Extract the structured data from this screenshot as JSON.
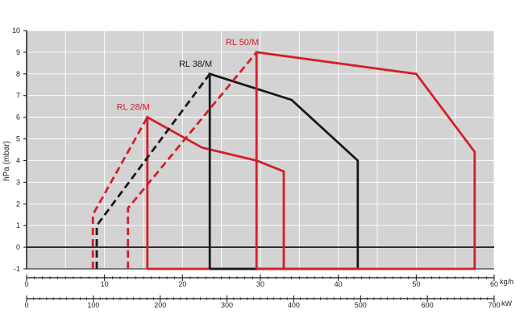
{
  "chart_data": {
    "type": "line",
    "title": "",
    "ylabel": "hPa (mbar)",
    "x_primary_unit": "kg/h",
    "x_secondary_unit": "kW",
    "xlim": [
      0,
      60
    ],
    "x_secondary_lim": [
      0,
      700
    ],
    "ylim": [
      -1,
      10
    ],
    "x_ticks": [
      "0",
      "10",
      "20",
      "30",
      "40",
      "50",
      "60"
    ],
    "x_secondary_ticks": [
      "0",
      "100",
      "200",
      "300",
      "400",
      "500",
      "600",
      "700"
    ],
    "y_ticks": [
      "-1",
      "0",
      "1",
      "2",
      "3",
      "4",
      "5",
      "6",
      "7",
      "8",
      "9",
      "10"
    ],
    "grid": true,
    "background": "#d3d3d3",
    "series": [
      {
        "name": "RL 28/M",
        "color": "#d4202a",
        "solid": [
          [
            15.5,
            -1
          ],
          [
            15.5,
            6
          ],
          [
            22.5,
            4.6
          ],
          [
            29.5,
            4
          ],
          [
            33,
            3.5
          ],
          [
            33,
            -1
          ],
          [
            15.5,
            -1
          ]
        ],
        "dashed": [
          [
            8.5,
            -1
          ],
          [
            8.5,
            1.5
          ],
          [
            15.5,
            6
          ]
        ]
      },
      {
        "name": "RL 38/M",
        "color": "#1a1a1a",
        "solid": [
          [
            23.5,
            -1
          ],
          [
            23.5,
            8
          ],
          [
            34,
            6.8
          ],
          [
            42.5,
            4
          ],
          [
            42.5,
            -1
          ],
          [
            23.5,
            -1
          ]
        ],
        "dashed": [
          [
            9,
            -1
          ],
          [
            9,
            1
          ],
          [
            23.5,
            8
          ]
        ]
      },
      {
        "name": "RL 50/M",
        "color": "#d4202a",
        "solid": [
          [
            29.5,
            -1
          ],
          [
            29.5,
            9
          ],
          [
            50,
            8
          ],
          [
            57.5,
            4.4
          ],
          [
            57.5,
            -1
          ],
          [
            29.5,
            -1
          ]
        ],
        "dashed": [
          [
            13,
            -1
          ],
          [
            13,
            1.8
          ],
          [
            29.5,
            9
          ]
        ]
      }
    ]
  }
}
